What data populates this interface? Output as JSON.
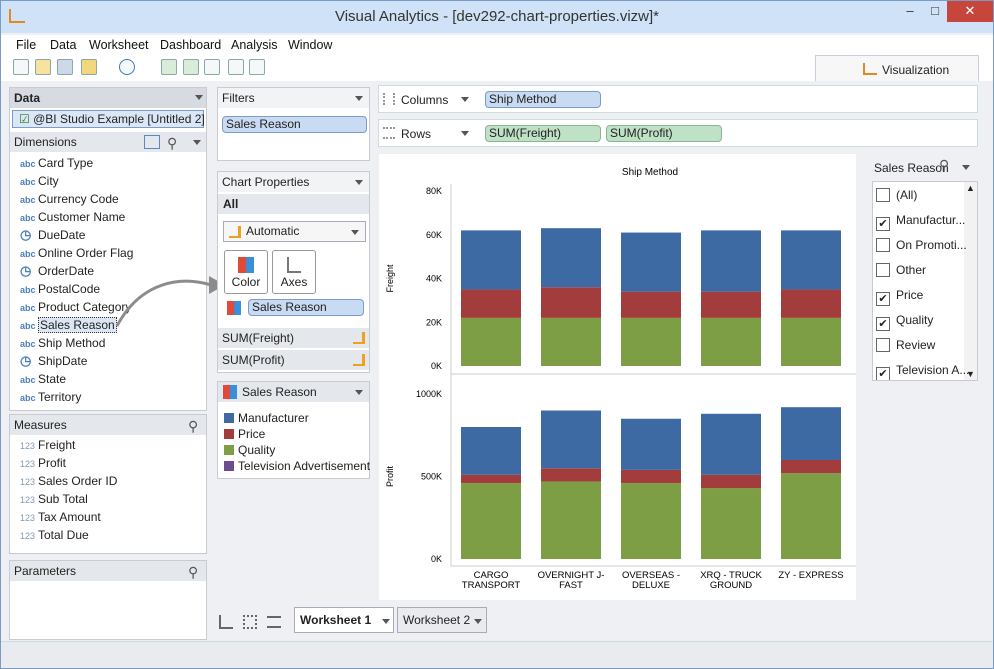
{
  "window": {
    "title": "Visual Analytics - [dev292-chart-properties.vizw]*",
    "min": "–",
    "max": "□",
    "close": "✕"
  },
  "menu": [
    "File",
    "Data",
    "Worksheet",
    "Dashboard",
    "Analysis",
    "Window"
  ],
  "vis_tab": "Visualization",
  "data_panel": {
    "title": "Data",
    "source": "@BI Studio Example [Untitled 2]",
    "dimensions_label": "Dimensions",
    "dimensions": [
      {
        "label": "Card Type",
        "icon": "abc"
      },
      {
        "label": "City",
        "icon": "abc"
      },
      {
        "label": "Currency Code",
        "icon": "abc"
      },
      {
        "label": "Customer Name",
        "icon": "abc"
      },
      {
        "label": "DueDate",
        "icon": "date"
      },
      {
        "label": "Online Order Flag",
        "icon": "abc"
      },
      {
        "label": "OrderDate",
        "icon": "date"
      },
      {
        "label": "PostalCode",
        "icon": "abc"
      },
      {
        "label": "Product Category",
        "icon": "abc"
      },
      {
        "label": "Sales Reason",
        "icon": "abc"
      },
      {
        "label": "Ship Method",
        "icon": "abc"
      },
      {
        "label": "ShipDate",
        "icon": "date"
      },
      {
        "label": "State",
        "icon": "abc"
      },
      {
        "label": "Territory",
        "icon": "abc"
      }
    ],
    "measures_label": "Measures",
    "measures": [
      "Freight",
      "Profit",
      "Sales Order ID",
      "Sub Total",
      "Tax Amount",
      "Total Due"
    ],
    "measure_icon": "123",
    "parameters_label": "Parameters"
  },
  "filters": {
    "title": "Filters",
    "items": [
      "Sales Reason"
    ]
  },
  "chart_props": {
    "title": "Chart Properties",
    "all": "All",
    "mark": "Automatic",
    "color": "Color",
    "axes": "Axes",
    "color_field": "Sales Reason",
    "measures": [
      "SUM(Freight)",
      "SUM(Profit)"
    ]
  },
  "legend_panel": {
    "title": "Sales Reason",
    "items": [
      {
        "label": "Manufacturer",
        "color": "#3e6aa3"
      },
      {
        "label": "Price",
        "color": "#a33c3c"
      },
      {
        "label": "Quality",
        "color": "#7d9e45"
      },
      {
        "label": "Television  Advertisement",
        "color": "#6a4c8f"
      }
    ]
  },
  "shelves": {
    "columns_label": "Columns",
    "columns": [
      "Ship Method"
    ],
    "rows_label": "Rows",
    "rows": [
      "SUM(Freight)",
      "SUM(Profit)"
    ]
  },
  "filter_card": {
    "title": "Sales Reason",
    "items": [
      {
        "label": "(All)",
        "checked": false
      },
      {
        "label": "Manufactur...",
        "checked": true
      },
      {
        "label": "On Promoti...",
        "checked": false
      },
      {
        "label": "Other",
        "checked": false
      },
      {
        "label": "Price",
        "checked": true
      },
      {
        "label": "Quality",
        "checked": true
      },
      {
        "label": "Review",
        "checked": false
      },
      {
        "label": "Television  A...",
        "checked": true
      }
    ]
  },
  "chart_data": {
    "type": "bar",
    "stacked": true,
    "title": "Ship Method",
    "categories": [
      "CARGO TRANSPORT",
      "OVERNIGHT J-FAST",
      "OVERSEAS - DELUXE",
      "XRQ - TRUCK GROUND",
      "ZY - EXPRESS"
    ],
    "category_lines": [
      [
        "CARGO",
        "TRANSPORT"
      ],
      [
        "OVERNIGHT J-",
        "FAST"
      ],
      [
        "OVERSEAS -",
        "DELUXE"
      ],
      [
        "XRQ - TRUCK",
        "GROUND"
      ],
      [
        "ZY - EXPRESS",
        ""
      ]
    ],
    "panels": [
      {
        "ylabel": "Freight",
        "ylim": [
          0,
          80000
        ],
        "ticks": [
          {
            "v": 0,
            "t": "0K"
          },
          {
            "v": 20000,
            "t": "20K"
          },
          {
            "v": 40000,
            "t": "40K"
          },
          {
            "v": 60000,
            "t": "60K"
          },
          {
            "v": 80000,
            "t": "80K"
          }
        ],
        "series": [
          {
            "name": "Quality",
            "color": "#7d9e45",
            "values": [
              22000,
              22000,
              22000,
              22000,
              22000
            ]
          },
          {
            "name": "Price",
            "color": "#a33c3c",
            "values": [
              13000,
              14000,
              12000,
              12000,
              13000
            ]
          },
          {
            "name": "Manufacturer",
            "color": "#3e6aa3",
            "values": [
              27000,
              27000,
              27000,
              28000,
              27000
            ]
          }
        ]
      },
      {
        "ylabel": "Profit",
        "ylim": [
          0,
          1000000
        ],
        "ticks": [
          {
            "v": 0,
            "t": "0K"
          },
          {
            "v": 500000,
            "t": "500K"
          },
          {
            "v": 1000000,
            "t": "1000K"
          }
        ],
        "series": [
          {
            "name": "Quality",
            "color": "#7d9e45",
            "values": [
              460000,
              470000,
              460000,
              430000,
              520000
            ]
          },
          {
            "name": "Price",
            "color": "#a33c3c",
            "values": [
              50000,
              80000,
              80000,
              80000,
              80000
            ]
          },
          {
            "name": "Manufacturer",
            "color": "#3e6aa3",
            "values": [
              290000,
              350000,
              310000,
              370000,
              320000
            ]
          }
        ]
      }
    ]
  },
  "tabs": [
    "Worksheet 1",
    "Worksheet 2"
  ]
}
